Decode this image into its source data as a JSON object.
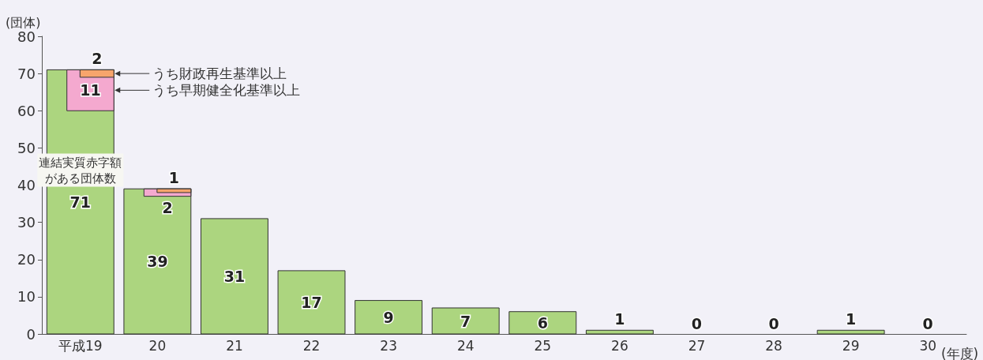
{
  "chart_data": {
    "type": "bar",
    "ylabel": "(団体)",
    "xlabel": "(年度)",
    "categories": [
      "平成19",
      "20",
      "21",
      "22",
      "23",
      "24",
      "25",
      "26",
      "27",
      "28",
      "29",
      "30"
    ],
    "series": [
      {
        "name": "連結実質赤字額がある団体数",
        "color": "#acd57f",
        "values": [
          71,
          39,
          31,
          17,
          9,
          7,
          6,
          1,
          0,
          0,
          1,
          0
        ]
      },
      {
        "name": "うち早期健全化基準以上",
        "color": "#f4a9cf",
        "values": [
          11,
          2,
          null,
          null,
          null,
          null,
          null,
          null,
          null,
          null,
          null,
          null
        ],
        "base": [
          60,
          37,
          null,
          null,
          null,
          null,
          null,
          null,
          null,
          null,
          null,
          null
        ]
      },
      {
        "name": "うち財政再生基準以上",
        "color": "#f7a56c",
        "values": [
          2,
          1,
          null,
          null,
          null,
          null,
          null,
          null,
          null,
          null,
          null,
          null
        ],
        "base": [
          69,
          38,
          null,
          null,
          null,
          null,
          null,
          null,
          null,
          null,
          null,
          null
        ]
      }
    ],
    "ylim": [
      0,
      80
    ],
    "yticks": [
      0,
      10,
      20,
      30,
      40,
      50,
      60,
      70,
      80
    ],
    "data_labels": true,
    "grid": false,
    "legend": "top left"
  }
}
